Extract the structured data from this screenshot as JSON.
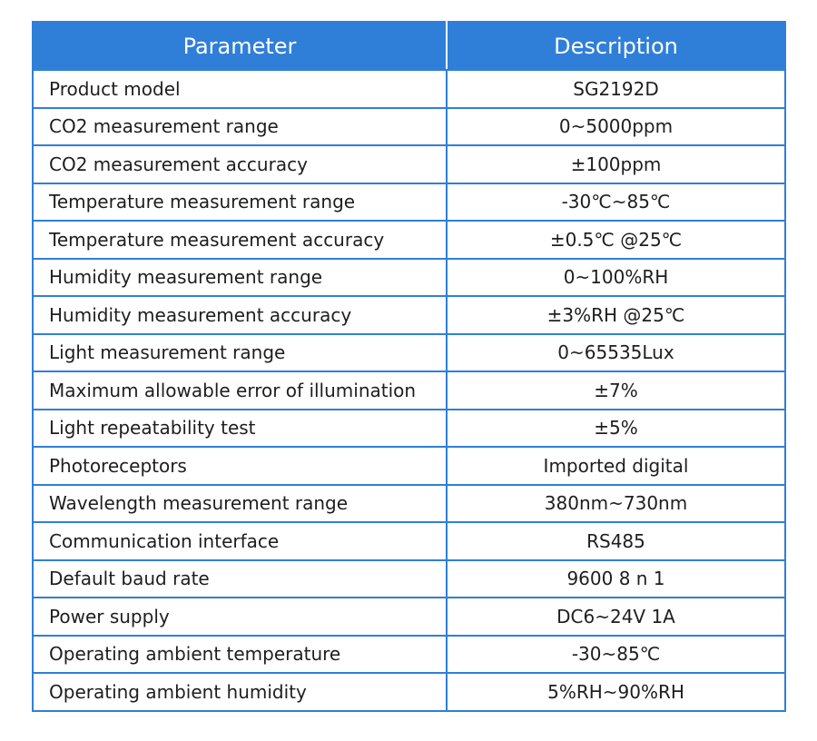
{
  "table": {
    "headers": {
      "parameter": "Parameter",
      "description": "Description"
    },
    "rows": [
      {
        "parameter": "Product model",
        "description": "SG2192D"
      },
      {
        "parameter": "CO2 measurement range",
        "description": "0~5000ppm"
      },
      {
        "parameter": "CO2 measurement accuracy",
        "description": "±100ppm"
      },
      {
        "parameter": "Temperature measurement range",
        "description": "-30℃~85℃"
      },
      {
        "parameter": "Temperature measurement accuracy",
        "description": "±0.5℃ @25℃"
      },
      {
        "parameter": "Humidity measurement range",
        "description": "0~100%RH"
      },
      {
        "parameter": "Humidity measurement accuracy",
        "description": "±3%RH @25℃"
      },
      {
        "parameter": "Light measurement range",
        "description": "0~65535Lux"
      },
      {
        "parameter": "Maximum allowable error of illumination",
        "description": "±7%"
      },
      {
        "parameter": "Light repeatability test",
        "description": "±5%"
      },
      {
        "parameter": "Photoreceptors",
        "description": "Imported digital"
      },
      {
        "parameter": "Wavelength measurement range",
        "description": "380nm~730nm"
      },
      {
        "parameter": "Communication interface",
        "description": "RS485"
      },
      {
        "parameter": "Default baud rate",
        "description": "9600 8 n 1"
      },
      {
        "parameter": "Power supply",
        "description": "DC6~24V 1A"
      },
      {
        "parameter": "Operating ambient temperature",
        "description": "-30~85℃"
      },
      {
        "parameter": "Operating ambient humidity",
        "description": "5%RH~90%RH"
      }
    ]
  },
  "colors": {
    "header_background": "#2f7fd8",
    "header_text": "#ffffff",
    "border": "#2f7fd8",
    "body_text": "#1e1e1e"
  }
}
